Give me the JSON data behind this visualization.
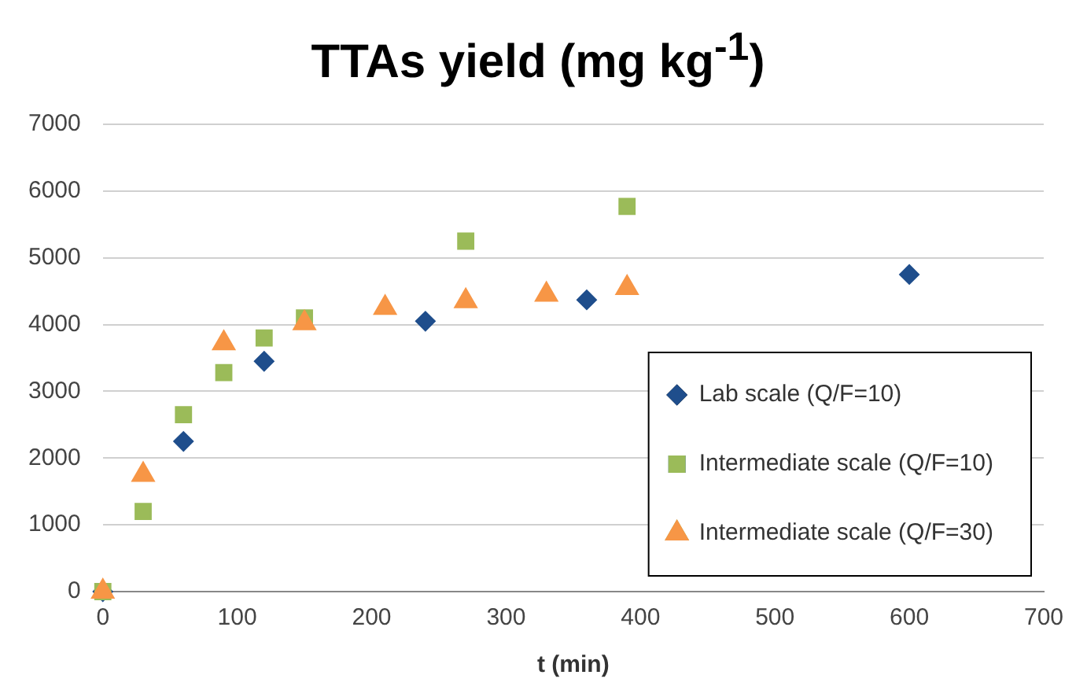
{
  "chart_data": {
    "type": "scatter",
    "title": "TTAs yield (mg kg$^{-1}$)",
    "xlabel": "t (min)",
    "xlim": [
      0,
      700
    ],
    "xticks": [
      0,
      100,
      200,
      300,
      400,
      500,
      600,
      700
    ],
    "ylim": [
      0,
      7000
    ],
    "yticks": [
      0,
      1000,
      2000,
      3000,
      4000,
      5000,
      6000,
      7000
    ],
    "grid": "y",
    "legend": "bottom right",
    "series": [
      {
        "name": "Lab scale (Q/F=10)",
        "color": "#1f4e8c",
        "marker": "diamond",
        "x": [
          0,
          60,
          120,
          240,
          360,
          600
        ],
        "values": [
          0,
          2250,
          3450,
          4050,
          4370,
          4750
        ]
      },
      {
        "name": "Intermediate scale (Q/F=10)",
        "color": "#9bbb59",
        "marker": "square",
        "x": [
          0,
          30,
          60,
          90,
          120,
          150,
          270,
          390
        ],
        "values": [
          0,
          1200,
          2650,
          3280,
          3800,
          4100,
          5250,
          5770
        ]
      },
      {
        "name": "Intermediate scale (Q/F=30)",
        "color": "#f79646",
        "marker": "triangle",
        "x": [
          0,
          30,
          90,
          150,
          210,
          270,
          330,
          390
        ],
        "values": [
          0,
          1750,
          3720,
          4020,
          4250,
          4350,
          4450,
          4550
        ]
      }
    ]
  }
}
